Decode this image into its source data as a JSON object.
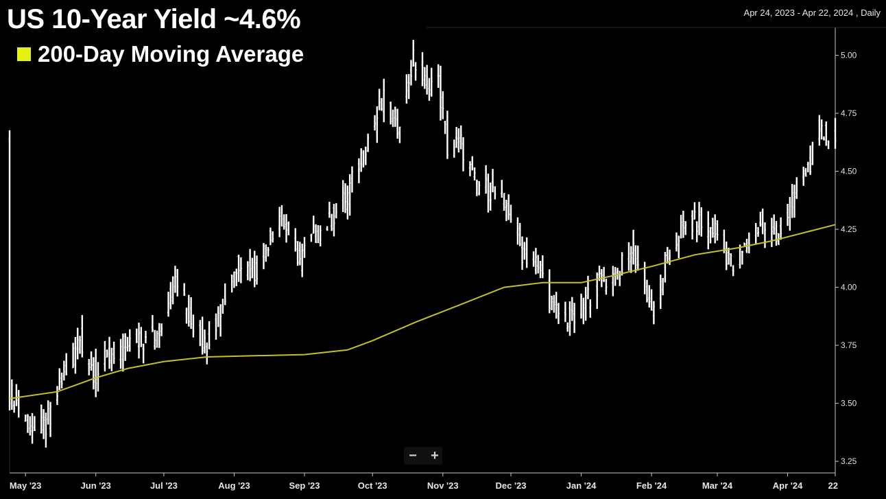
{
  "header": {
    "title": "US 10-Year Yield ~4.6%",
    "legend_label": "200-Day Moving Average",
    "date_range": "Apr 24, 2023 - Apr 22, 2024 , Daily"
  },
  "zoom": {
    "minus": "−",
    "plus": "+"
  },
  "colors": {
    "background": "#000000",
    "bars": "#ffffff",
    "ma": "#c3c12a",
    "legend": "#e3f20f",
    "axis": "#c8c8c8"
  },
  "chart_data": {
    "type": "ohlc-bar",
    "series": [
      {
        "name": "US 10-Year Yield",
        "kind": "bars"
      },
      {
        "name": "200-Day Moving Average",
        "kind": "line"
      }
    ],
    "ylim": [
      3.2,
      5.12
    ],
    "xlim": [
      "2023-04-24",
      "2024-04-22"
    ],
    "y_ticks": [
      "3.25",
      "3.50",
      "3.75",
      "4.00",
      "4.25",
      "4.50",
      "4.75",
      "5.00"
    ],
    "x_ticks": [
      {
        "label": "May '23",
        "date": "2023-05-01"
      },
      {
        "label": "Jun '23",
        "date": "2023-06-01"
      },
      {
        "label": "Jul '23",
        "date": "2023-07-01"
      },
      {
        "label": "Aug '23",
        "date": "2023-08-01"
      },
      {
        "label": "Sep '23",
        "date": "2023-09-01"
      },
      {
        "label": "Oct '23",
        "date": "2023-10-01"
      },
      {
        "label": "Nov '23",
        "date": "2023-11-01"
      },
      {
        "label": "Dec '23",
        "date": "2023-12-01"
      },
      {
        "label": "Jan '24",
        "date": "2024-01-01"
      },
      {
        "label": "Feb '24",
        "date": "2024-02-01"
      },
      {
        "label": "Mar '24",
        "date": "2024-03-01"
      },
      {
        "label": "Apr '24",
        "date": "2024-04-01"
      },
      {
        "label": "22",
        "date": "2024-04-22"
      }
    ],
    "yield_path": [
      [
        "2023-04-24",
        3.55
      ],
      [
        "2023-05-01",
        3.45
      ],
      [
        "2023-05-05",
        3.38
      ],
      [
        "2023-05-10",
        3.4
      ],
      [
        "2023-05-18",
        3.62
      ],
      [
        "2023-05-25",
        3.78
      ],
      [
        "2023-06-01",
        3.62
      ],
      [
        "2023-06-08",
        3.72
      ],
      [
        "2023-06-15",
        3.75
      ],
      [
        "2023-06-22",
        3.76
      ],
      [
        "2023-06-28",
        3.8
      ],
      [
        "2023-07-06",
        4.04
      ],
      [
        "2023-07-12",
        3.88
      ],
      [
        "2023-07-19",
        3.75
      ],
      [
        "2023-07-26",
        3.9
      ],
      [
        "2023-08-03",
        4.12
      ],
      [
        "2023-08-10",
        4.06
      ],
      [
        "2023-08-21",
        4.32
      ],
      [
        "2023-08-30",
        4.12
      ],
      [
        "2023-09-05",
        4.22
      ],
      [
        "2023-09-12",
        4.28
      ],
      [
        "2023-09-20",
        4.4
      ],
      [
        "2023-09-28",
        4.62
      ],
      [
        "2023-10-06",
        4.8
      ],
      [
        "2023-10-12",
        4.7
      ],
      [
        "2023-10-19",
        4.98
      ],
      [
        "2023-10-24",
        4.88
      ],
      [
        "2023-10-30",
        4.88
      ],
      [
        "2023-11-03",
        4.6
      ],
      [
        "2023-11-09",
        4.62
      ],
      [
        "2023-11-15",
        4.45
      ],
      [
        "2023-11-22",
        4.42
      ],
      [
        "2023-11-30",
        4.34
      ],
      [
        "2023-12-06",
        4.15
      ],
      [
        "2023-12-13",
        4.1
      ],
      [
        "2023-12-20",
        3.9
      ],
      [
        "2023-12-28",
        3.85
      ],
      [
        "2024-01-04",
        3.96
      ],
      [
        "2024-01-10",
        4.03
      ],
      [
        "2024-01-16",
        4.05
      ],
      [
        "2024-01-24",
        4.16
      ],
      [
        "2024-01-31",
        3.95
      ],
      [
        "2024-02-02",
        3.88
      ],
      [
        "2024-02-07",
        4.1
      ],
      [
        "2024-02-14",
        4.25
      ],
      [
        "2024-02-21",
        4.28
      ],
      [
        "2024-02-29",
        4.25
      ],
      [
        "2024-03-08",
        4.08
      ],
      [
        "2024-03-14",
        4.18
      ],
      [
        "2024-03-20",
        4.28
      ],
      [
        "2024-03-27",
        4.2
      ],
      [
        "2024-04-02",
        4.34
      ],
      [
        "2024-04-10",
        4.52
      ],
      [
        "2024-04-16",
        4.66
      ],
      [
        "2024-04-22",
        4.62
      ]
    ],
    "ma_path": [
      [
        "2023-04-24",
        3.52
      ],
      [
        "2023-05-15",
        3.55
      ],
      [
        "2023-06-01",
        3.61
      ],
      [
        "2023-06-15",
        3.65
      ],
      [
        "2023-07-01",
        3.68
      ],
      [
        "2023-07-20",
        3.7
      ],
      [
        "2023-08-10",
        3.705
      ],
      [
        "2023-09-01",
        3.71
      ],
      [
        "2023-09-20",
        3.73
      ],
      [
        "2023-10-01",
        3.77
      ],
      [
        "2023-10-20",
        3.85
      ],
      [
        "2023-11-10",
        3.93
      ],
      [
        "2023-11-28",
        4.0
      ],
      [
        "2023-12-15",
        4.02
      ],
      [
        "2024-01-01",
        4.02
      ],
      [
        "2024-01-15",
        4.05
      ],
      [
        "2024-02-01",
        4.09
      ],
      [
        "2024-02-20",
        4.14
      ],
      [
        "2024-03-10",
        4.17
      ],
      [
        "2024-03-25",
        4.2
      ],
      [
        "2024-04-10",
        4.24
      ],
      [
        "2024-04-22",
        4.27
      ]
    ]
  }
}
